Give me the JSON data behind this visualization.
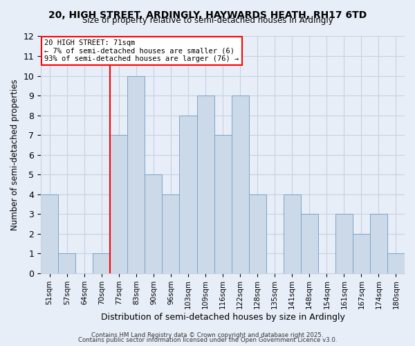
{
  "title_line1": "20, HIGH STREET, ARDINGLY, HAYWARDS HEATH, RH17 6TD",
  "title_line2": "Size of property relative to semi-detached houses in Ardingly",
  "xlabel": "Distribution of semi-detached houses by size in Ardingly",
  "ylabel": "Number of semi-detached properties",
  "bin_labels": [
    "51sqm",
    "57sqm",
    "64sqm",
    "70sqm",
    "77sqm",
    "83sqm",
    "90sqm",
    "96sqm",
    "103sqm",
    "109sqm",
    "116sqm",
    "122sqm",
    "128sqm",
    "135sqm",
    "141sqm",
    "148sqm",
    "154sqm",
    "161sqm",
    "167sqm",
    "174sqm",
    "180sqm"
  ],
  "bar_heights": [
    4,
    1,
    0,
    1,
    7,
    10,
    5,
    4,
    8,
    9,
    7,
    9,
    4,
    0,
    4,
    3,
    0,
    3,
    2,
    3,
    1
  ],
  "bar_color": "#ccd9e8",
  "bar_edge_color": "#7ba4c8",
  "red_line_bar_index": 4,
  "annotation_box_text": "20 HIGH STREET: 71sqm\n← 7% of semi-detached houses are smaller (6)\n93% of semi-detached houses are larger (76) →",
  "ylim": [
    0,
    12
  ],
  "yticks": [
    0,
    1,
    2,
    3,
    4,
    5,
    6,
    7,
    8,
    9,
    10,
    11,
    12
  ],
  "background_color": "#e8eef8",
  "grid_color": "#c8d0e0",
  "footer_line1": "Contains HM Land Registry data © Crown copyright and database right 2025.",
  "footer_line2": "Contains public sector information licensed under the Open Government Licence v3.0."
}
